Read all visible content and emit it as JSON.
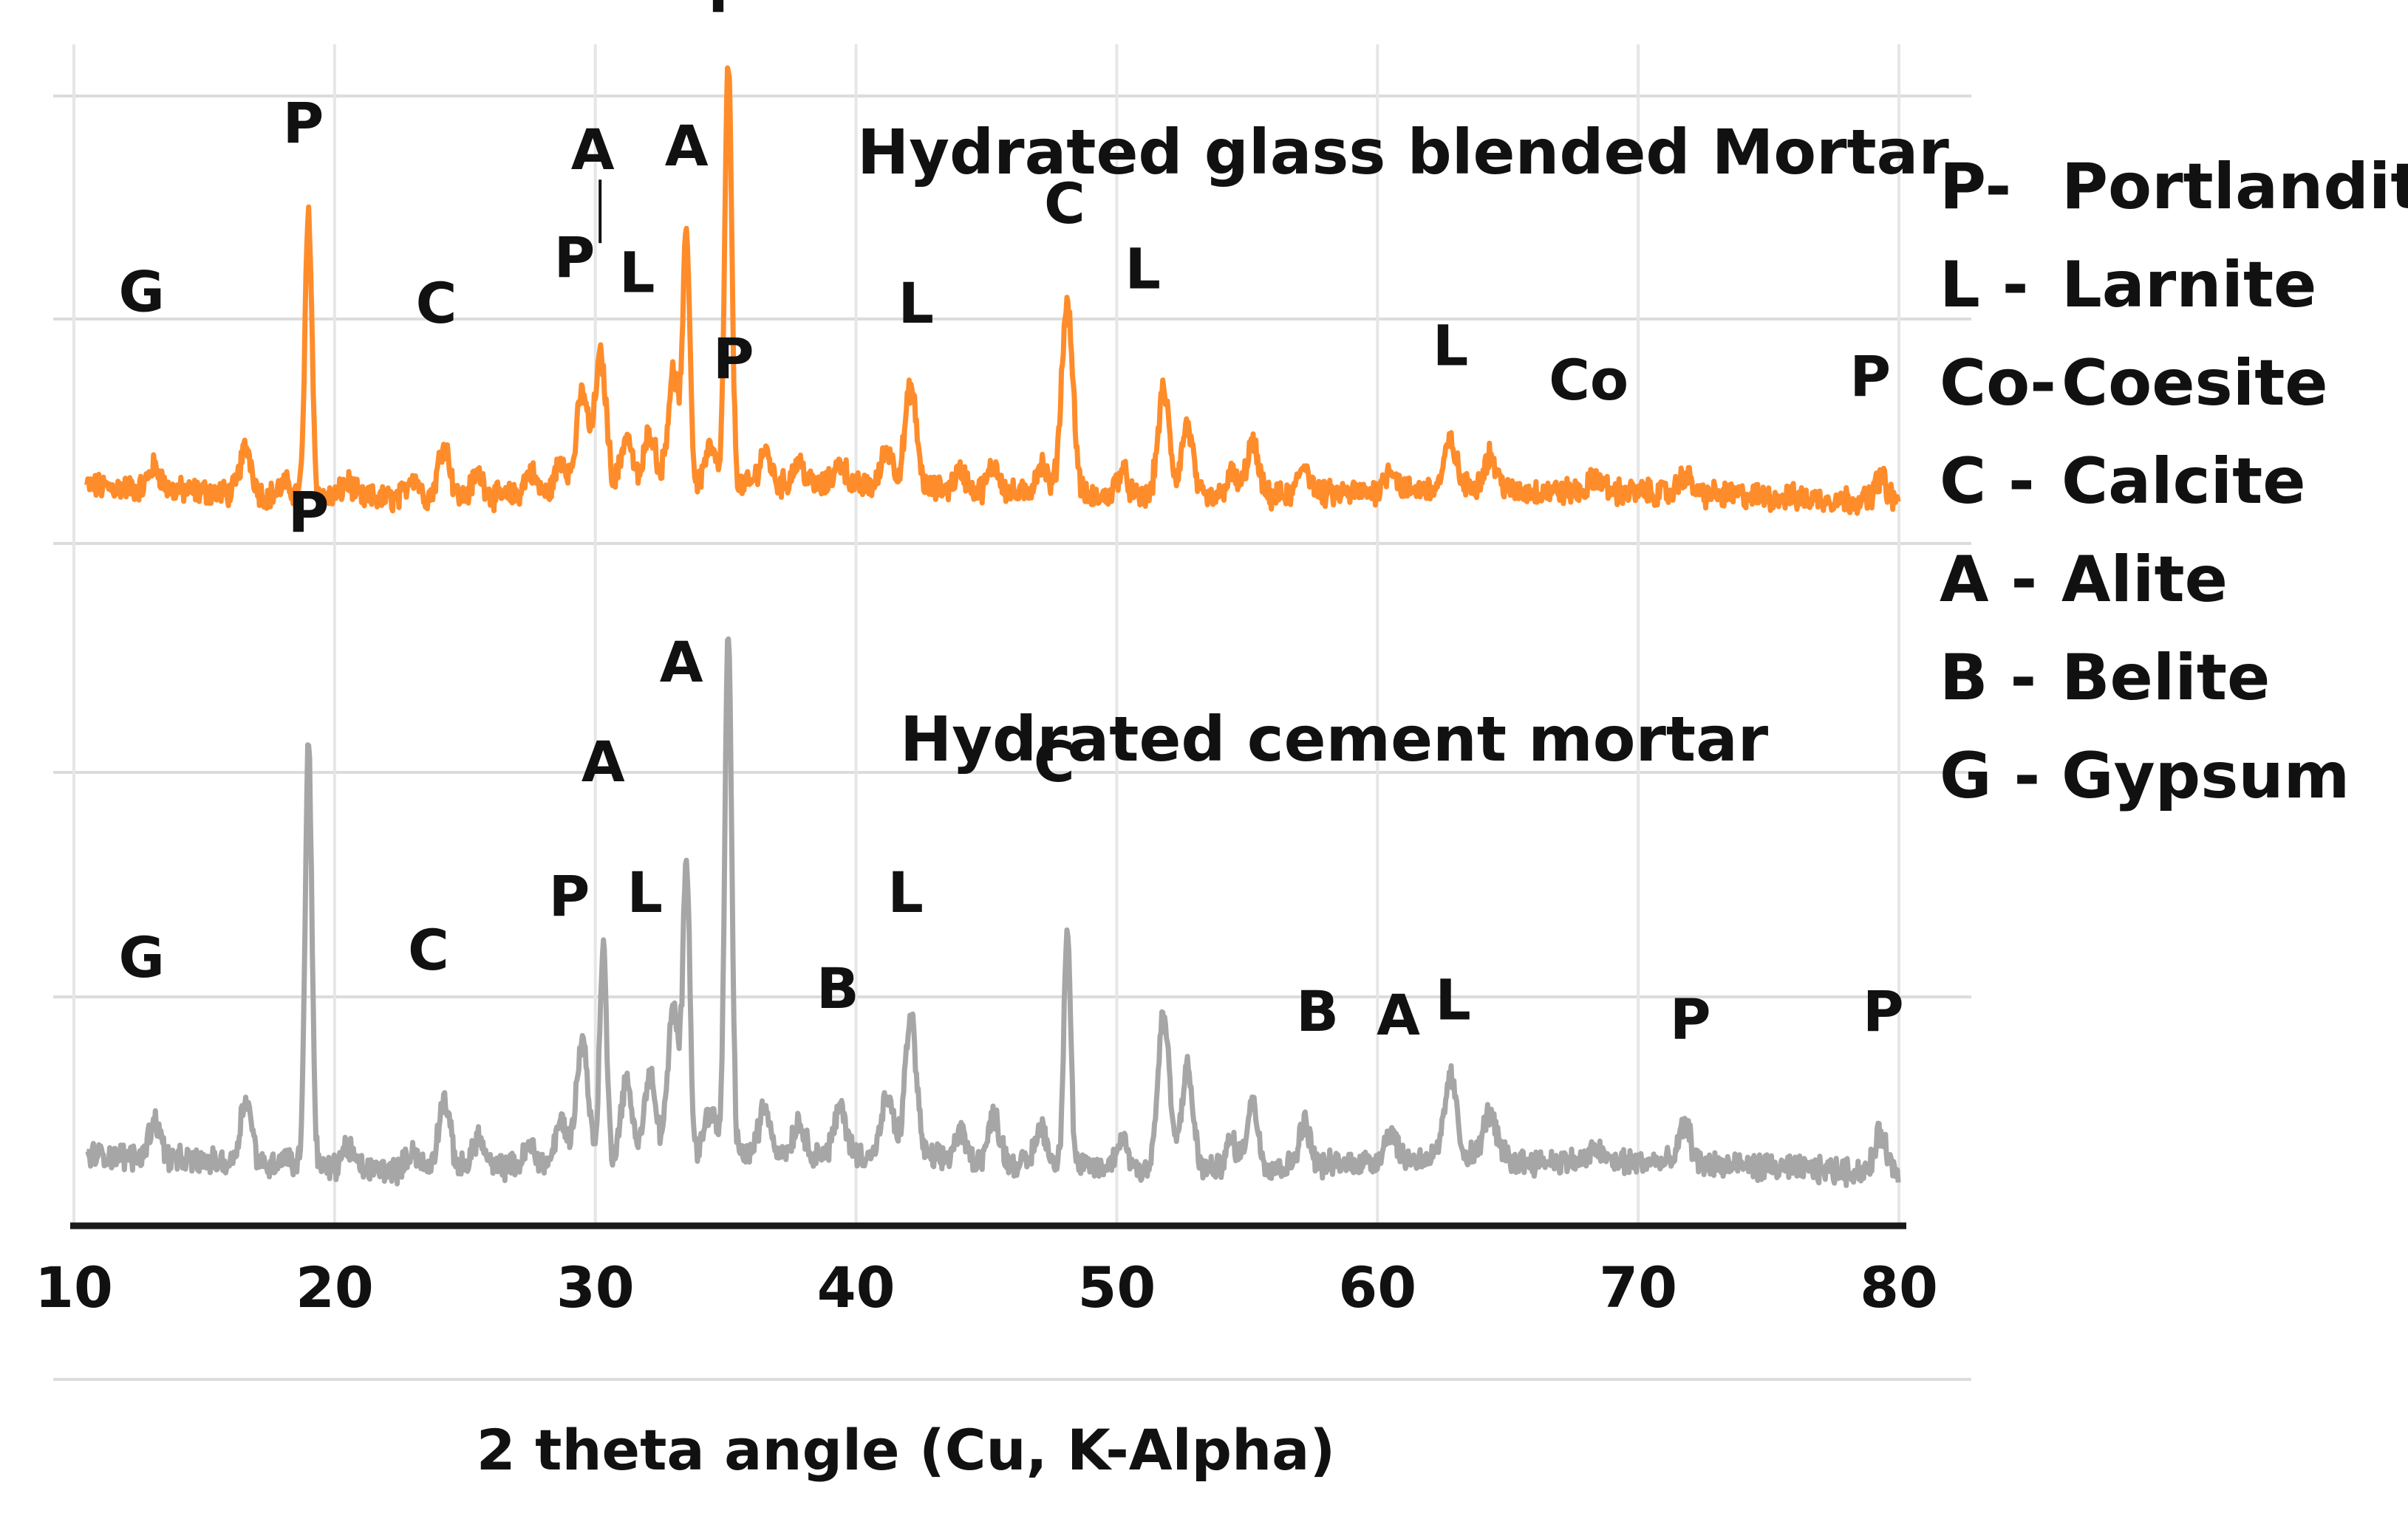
{
  "chart_data": {
    "type": "line",
    "xlabel": "2 theta angle (Cu, K-Alpha)",
    "xlim": [
      10,
      80
    ],
    "x_ticks": [
      "10",
      "20",
      "30",
      "40",
      "50",
      "60",
      "70",
      "80"
    ],
    "grid": true,
    "legend_position": "right",
    "legend": [
      {
        "code": "P-",
        "name": "Portlandite"
      },
      {
        "code": "L -",
        "name": "Larnite"
      },
      {
        "code": "Co-",
        "name": "Coesite"
      },
      {
        "code": "C -",
        "name": "Calcite"
      },
      {
        "code": "A -",
        "name": "Alite"
      },
      {
        "code": "B -",
        "name": "Belite"
      },
      {
        "code": "G -",
        "name": "Gypsum"
      }
    ],
    "series": [
      {
        "name": "Hydrated glass blended Mortar",
        "color": "#ff8c2a",
        "baseline": 0.5,
        "peaks": [
          {
            "x": 13.1,
            "h": 0.6
          },
          {
            "x": 16.6,
            "h": 1.2
          },
          {
            "x": 18.1,
            "h": 0.3
          },
          {
            "x": 19.0,
            "h": 7.4
          },
          {
            "x": 20.5,
            "h": 0.4
          },
          {
            "x": 23.0,
            "h": 0.6
          },
          {
            "x": 24.2,
            "h": 1.4
          },
          {
            "x": 25.5,
            "h": 0.6
          },
          {
            "x": 27.5,
            "h": 0.6
          },
          {
            "x": 28.7,
            "h": 0.9
          },
          {
            "x": 29.5,
            "h": 2.6
          },
          {
            "x": 30.2,
            "h": 3.5
          },
          {
            "x": 31.2,
            "h": 1.4
          },
          {
            "x": 32.1,
            "h": 1.5
          },
          {
            "x": 33.0,
            "h": 3.0
          },
          {
            "x": 33.5,
            "h": 6.5
          },
          {
            "x": 34.4,
            "h": 1.0
          },
          {
            "x": 35.1,
            "h": 11.0
          },
          {
            "x": 36.5,
            "h": 0.9
          },
          {
            "x": 37.8,
            "h": 0.6
          },
          {
            "x": 39.4,
            "h": 0.6
          },
          {
            "x": 41.2,
            "h": 1.0
          },
          {
            "x": 42.1,
            "h": 2.6
          },
          {
            "x": 44.0,
            "h": 0.5
          },
          {
            "x": 45.3,
            "h": 0.7
          },
          {
            "x": 47.1,
            "h": 0.8
          },
          {
            "x": 48.1,
            "h": 5.0
          },
          {
            "x": 50.2,
            "h": 0.7
          },
          {
            "x": 51.8,
            "h": 2.8
          },
          {
            "x": 52.7,
            "h": 1.9
          },
          {
            "x": 54.4,
            "h": 0.6
          },
          {
            "x": 55.2,
            "h": 1.4
          },
          {
            "x": 57.2,
            "h": 0.8
          },
          {
            "x": 60.5,
            "h": 0.6
          },
          {
            "x": 62.8,
            "h": 1.2
          },
          {
            "x": 64.3,
            "h": 0.8
          },
          {
            "x": 68.4,
            "h": 0.4
          },
          {
            "x": 71.8,
            "h": 0.5
          },
          {
            "x": 79.3,
            "h": 0.6
          }
        ],
        "labels": [
          {
            "text": "G",
            "x": 12.6,
            "y": 5.2
          },
          {
            "text": "P",
            "x": 18.8,
            "y": 9.6
          },
          {
            "text": "C",
            "x": 23.9,
            "y": 4.9
          },
          {
            "text": "P",
            "x": 29.2,
            "y": 6.1
          },
          {
            "text": "A",
            "x": 29.9,
            "y": 8.9
          },
          {
            "text": "L",
            "x": 31.6,
            "y": 5.7
          },
          {
            "text": "A",
            "x": 33.5,
            "y": 9.0
          },
          {
            "text": "P",
            "x": 35.1,
            "y": 13.0
          },
          {
            "text": "L",
            "x": 42.3,
            "y": 4.9
          },
          {
            "text": "C",
            "x": 48.0,
            "y": 7.5
          },
          {
            "text": "L",
            "x": 51.0,
            "y": 5.8
          },
          {
            "text": "L",
            "x": 62.8,
            "y": 3.8
          },
          {
            "text": "Co",
            "x": 68.1,
            "y": 2.9
          },
          {
            "text": "P",
            "x": 78.9,
            "y": 3.0
          }
        ]
      },
      {
        "name": "Hydrated cement mortar",
        "color": "#a6a6a6",
        "baseline": 0.6,
        "peaks": [
          {
            "x": 13.1,
            "h": 1.0
          },
          {
            "x": 16.6,
            "h": 1.7
          },
          {
            "x": 18.1,
            "h": 0.3
          },
          {
            "x": 19.0,
            "h": 11.0
          },
          {
            "x": 20.5,
            "h": 0.6
          },
          {
            "x": 23.0,
            "h": 0.5
          },
          {
            "x": 24.2,
            "h": 1.8
          },
          {
            "x": 25.5,
            "h": 0.8
          },
          {
            "x": 27.5,
            "h": 0.5
          },
          {
            "x": 28.7,
            "h": 1.1
          },
          {
            "x": 29.5,
            "h": 3.2
          },
          {
            "x": 30.3,
            "h": 5.6
          },
          {
            "x": 31.2,
            "h": 2.0
          },
          {
            "x": 32.1,
            "h": 2.1
          },
          {
            "x": 33.0,
            "h": 3.8
          },
          {
            "x": 33.5,
            "h": 7.6
          },
          {
            "x": 34.4,
            "h": 1.2
          },
          {
            "x": 35.1,
            "h": 13.6
          },
          {
            "x": 36.5,
            "h": 1.2
          },
          {
            "x": 37.8,
            "h": 0.8
          },
          {
            "x": 39.4,
            "h": 1.2
          },
          {
            "x": 41.2,
            "h": 1.5
          },
          {
            "x": 42.1,
            "h": 3.6
          },
          {
            "x": 44.0,
            "h": 0.7
          },
          {
            "x": 45.3,
            "h": 1.2
          },
          {
            "x": 47.1,
            "h": 1.0
          },
          {
            "x": 48.1,
            "h": 6.2
          },
          {
            "x": 50.2,
            "h": 0.8
          },
          {
            "x": 51.8,
            "h": 4.0
          },
          {
            "x": 52.7,
            "h": 2.6
          },
          {
            "x": 54.4,
            "h": 0.7
          },
          {
            "x": 55.2,
            "h": 1.7
          },
          {
            "x": 57.2,
            "h": 1.1
          },
          {
            "x": 60.5,
            "h": 0.8
          },
          {
            "x": 62.8,
            "h": 2.1
          },
          {
            "x": 64.3,
            "h": 1.1
          },
          {
            "x": 68.4,
            "h": 0.3
          },
          {
            "x": 71.8,
            "h": 1.0
          },
          {
            "x": 79.3,
            "h": 1.0
          }
        ],
        "labels": [
          {
            "text": "G",
            "x": 12.6,
            "y": 5.4
          },
          {
            "text": "P",
            "x": 19.0,
            "y": 17.0
          },
          {
            "text": "C",
            "x": 23.6,
            "y": 5.6
          },
          {
            "text": "P",
            "x": 29.0,
            "y": 7.0
          },
          {
            "text": "A",
            "x": 30.3,
            "y": 10.5
          },
          {
            "text": "L",
            "x": 31.9,
            "y": 7.1
          },
          {
            "text": "A",
            "x": 33.3,
            "y": 13.1
          },
          {
            "text": "P",
            "x": 35.3,
            "y": 21.0
          },
          {
            "text": "B",
            "x": 39.3,
            "y": 4.6
          },
          {
            "text": "L",
            "x": 41.9,
            "y": 7.1
          },
          {
            "text": "C",
            "x": 47.6,
            "y": 10.5
          },
          {
            "text": "B",
            "x": 57.7,
            "y": 4.0
          },
          {
            "text": "A",
            "x": 60.8,
            "y": 3.9
          },
          {
            "text": "L",
            "x": 62.9,
            "y": 4.3
          },
          {
            "text": "P",
            "x": 72.0,
            "y": 3.8
          },
          {
            "text": "P",
            "x": 79.4,
            "y": 4.0
          }
        ]
      }
    ]
  }
}
